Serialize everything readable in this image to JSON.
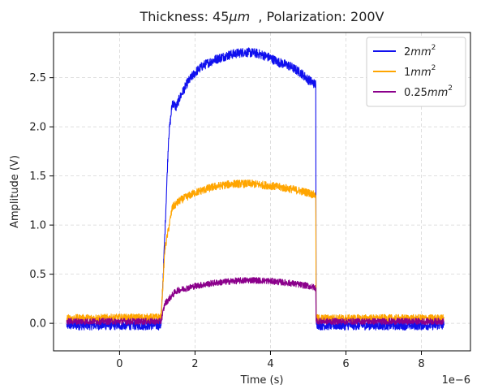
{
  "chart_data": {
    "type": "line",
    "title": "Thickness: 45μm  , Polarization: 200V",
    "title_parts": {
      "prefix": "Thickness: 45",
      "mu": "μ",
      "m": "m",
      "suffix": "  , Polarization: 200V"
    },
    "xlabel": "Time (s)",
    "ylabel": "Amplitude (V)",
    "x_offset_label": "1e−6",
    "xlim": [
      -1.75,
      9.3
    ],
    "ylim": [
      -0.28,
      2.96
    ],
    "xticks": [
      0,
      2,
      4,
      6,
      8
    ],
    "xtick_labels": [
      "0",
      "2",
      "4",
      "6",
      "8"
    ],
    "yticks": [
      0.0,
      0.5,
      1.0,
      1.5,
      2.0,
      2.5
    ],
    "ytick_labels": [
      "0.0",
      "0.5",
      "1.0",
      "1.5",
      "2.0",
      "2.5"
    ],
    "grid": true,
    "legend_position": "top-right",
    "series": [
      {
        "name": "2mm2",
        "legend_base": "2",
        "legend_unit": "mm",
        "legend_sup": "2",
        "color": "#1010ee",
        "noise": 0.03,
        "x": [
          -1.4,
          1.1,
          1.2,
          1.3,
          1.4,
          1.5,
          1.6,
          1.8,
          2.0,
          2.2,
          2.5,
          2.8,
          3.0,
          3.3,
          3.6,
          3.8,
          4.0,
          4.2,
          4.5,
          4.8,
          5.0,
          5.2,
          5.21,
          5.3,
          8.6
        ],
        "y": [
          -0.02,
          -0.02,
          0.9,
          1.9,
          2.25,
          2.2,
          2.3,
          2.45,
          2.55,
          2.62,
          2.68,
          2.72,
          2.74,
          2.76,
          2.75,
          2.73,
          2.7,
          2.66,
          2.62,
          2.55,
          2.48,
          2.43,
          0.0,
          -0.02,
          -0.02
        ]
      },
      {
        "name": "1mm2",
        "legend_base": "1",
        "legend_unit": "mm",
        "legend_sup": "2",
        "color": "#ffa500",
        "noise": 0.025,
        "x": [
          -1.4,
          1.1,
          1.2,
          1.4,
          1.6,
          2.0,
          2.5,
          3.0,
          3.5,
          4.0,
          4.5,
          5.0,
          5.2,
          5.21,
          5.3,
          8.6
        ],
        "y": [
          0.05,
          0.06,
          0.75,
          1.18,
          1.25,
          1.33,
          1.39,
          1.42,
          1.42,
          1.4,
          1.37,
          1.33,
          1.3,
          0.05,
          0.05,
          0.05
        ]
      },
      {
        "name": "0.25mm2",
        "legend_base": "0.25",
        "legend_unit": "mm",
        "legend_sup": "2",
        "color": "#8b008b",
        "noise": 0.02,
        "x": [
          -1.4,
          1.1,
          1.2,
          1.5,
          2.0,
          2.5,
          3.0,
          3.5,
          4.0,
          4.5,
          5.0,
          5.2,
          5.21,
          5.3,
          8.6
        ],
        "y": [
          0.02,
          0.02,
          0.2,
          0.33,
          0.38,
          0.41,
          0.43,
          0.44,
          0.43,
          0.41,
          0.38,
          0.36,
          0.03,
          0.02,
          0.02
        ]
      }
    ]
  }
}
